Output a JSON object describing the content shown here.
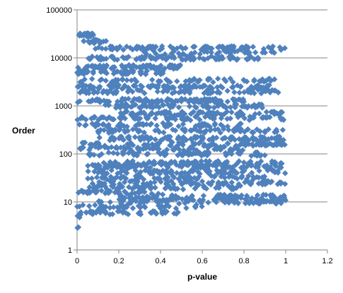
{
  "chart_data": {
    "type": "scatter",
    "title": "",
    "xlabel": "p-value",
    "ylabel": "Order",
    "xlim": [
      0,
      1.2
    ],
    "ylim": [
      1,
      100000
    ],
    "y_scale": "log",
    "grid": {
      "x": false,
      "y": true
    },
    "legend": "none",
    "marker": "diamond",
    "color": "#4F81BD",
    "x_ticks": [
      {
        "value": 0,
        "label": "0"
      },
      {
        "value": 0.2,
        "label": "0.2"
      },
      {
        "value": 0.4,
        "label": "0.4"
      },
      {
        "value": 0.6,
        "label": "0.6"
      },
      {
        "value": 0.8,
        "label": "0.8"
      },
      {
        "value": 1,
        "label": "1"
      },
      {
        "value": 1.2,
        "label": "1.2"
      }
    ],
    "y_ticks": [
      {
        "value": 1,
        "label": "1"
      },
      {
        "value": 10,
        "label": "10"
      },
      {
        "value": 100,
        "label": "100"
      },
      {
        "value": 1000,
        "label": "1000"
      },
      {
        "value": 10000,
        "label": "10000"
      },
      {
        "value": 100000,
        "label": "100000"
      }
    ],
    "bands": [
      {
        "order": 30000,
        "x_range": [
          0,
          0.08
        ],
        "count": 25
      },
      {
        "order": 22000,
        "x_range": [
          0.03,
          0.15
        ],
        "count": 20
      },
      {
        "order": 16000,
        "x_range": [
          0.08,
          1.0
        ],
        "count": 90
      },
      {
        "order": 13000,
        "x_range": [
          0.3,
          0.95
        ],
        "count": 40
      },
      {
        "order": 10000,
        "x_range": [
          0.05,
          0.9
        ],
        "count": 90
      },
      {
        "order": 6500,
        "x_range": [
          0,
          0.5
        ],
        "count": 80
      },
      {
        "order": 5000,
        "x_range": [
          0,
          0.45
        ],
        "count": 60
      },
      {
        "order": 3400,
        "x_range": [
          0,
          0.95
        ],
        "count": 60
      },
      {
        "order": 2500,
        "x_range": [
          0,
          0.95
        ],
        "count": 100
      },
      {
        "order": 2000,
        "x_range": [
          0,
          1.0
        ],
        "count": 80
      },
      {
        "order": 1300,
        "x_range": [
          0,
          0.8
        ],
        "count": 100
      },
      {
        "order": 1000,
        "x_range": [
          0.1,
          0.9
        ],
        "count": 80
      },
      {
        "order": 700,
        "x_range": [
          0.2,
          1.0
        ],
        "count": 80
      },
      {
        "order": 550,
        "x_range": [
          0,
          1.0
        ],
        "count": 80
      },
      {
        "order": 400,
        "x_range": [
          0,
          0.8
        ],
        "count": 60
      },
      {
        "order": 300,
        "x_range": [
          0.1,
          1.0
        ],
        "count": 70
      },
      {
        "order": 210,
        "x_range": [
          0.1,
          1.0
        ],
        "count": 90
      },
      {
        "order": 160,
        "x_range": [
          0,
          1.0
        ],
        "count": 80
      },
      {
        "order": 130,
        "x_range": [
          0,
          0.8
        ],
        "count": 70
      },
      {
        "order": 100,
        "x_range": [
          0.05,
          0.9
        ],
        "count": 70
      },
      {
        "order": 65,
        "x_range": [
          0.1,
          1.0
        ],
        "count": 80
      },
      {
        "order": 55,
        "x_range": [
          0.05,
          1.0
        ],
        "count": 90
      },
      {
        "order": 42,
        "x_range": [
          0.05,
          1.0
        ],
        "count": 80
      },
      {
        "order": 32,
        "x_range": [
          0.05,
          0.9
        ],
        "count": 70
      },
      {
        "order": 25,
        "x_range": [
          0.05,
          1.0
        ],
        "count": 80
      },
      {
        "order": 20,
        "x_range": [
          0.05,
          0.8
        ],
        "count": 60
      },
      {
        "order": 16,
        "x_range": [
          0,
          0.4
        ],
        "count": 40
      },
      {
        "order": 13,
        "x_range": [
          0.2,
          1.0
        ],
        "count": 70
      },
      {
        "order": 11,
        "x_range": [
          0.2,
          1.0
        ],
        "count": 70
      },
      {
        "order": 10,
        "x_range": [
          0.1,
          1.0
        ],
        "count": 50
      },
      {
        "order": 8,
        "x_range": [
          0,
          0.6
        ],
        "count": 40
      },
      {
        "order": 6,
        "x_range": [
          0,
          0.5
        ],
        "count": 40
      },
      {
        "order": 5,
        "x_range": [
          0,
          0.03
        ],
        "count": 4
      },
      {
        "order": 3,
        "x_range": [
          0,
          0.01
        ],
        "count": 2
      }
    ]
  }
}
